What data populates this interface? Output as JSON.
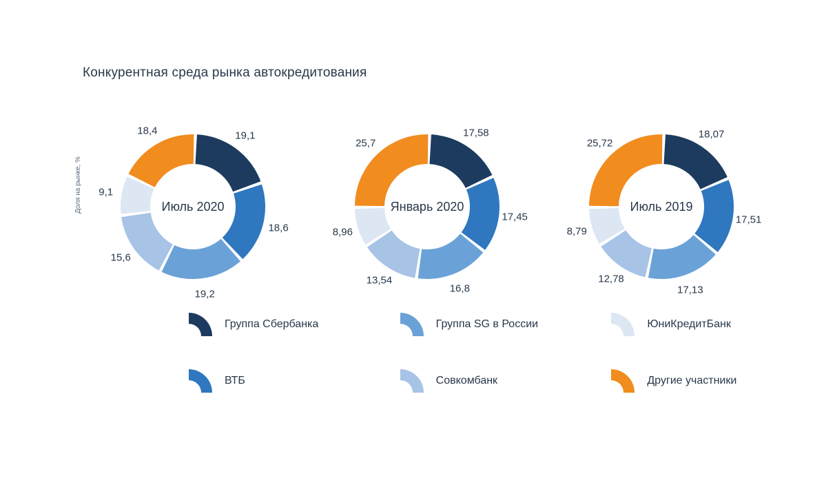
{
  "title": "Конкурентная среда рынка автокредитования",
  "y_axis_label": "Доля на рынке, %",
  "background_color": "#ffffff",
  "text_color": "#28384a",
  "title_fontsize": 19,
  "center_label_fontsize": 18,
  "slice_label_fontsize": 15,
  "legend_fontsize": 16,
  "donut": {
    "outer_radius": 105,
    "inner_radius": 62,
    "gap_deg": 2.5,
    "label_radius": 128,
    "start_angle_deg": 2
  },
  "series": [
    {
      "key": "sberbank",
      "label": "Группа Сбербанка",
      "color": "#1c3b5e"
    },
    {
      "key": "vtb",
      "label": "ВТБ",
      "color": "#2f77bf"
    },
    {
      "key": "sg",
      "label": "Группа SG в России",
      "color": "#6aa2d8"
    },
    {
      "key": "sovcom",
      "label": "Совкомбанк",
      "color": "#a7c3e6"
    },
    {
      "key": "unicredit",
      "label": "ЮниКредитБанк",
      "color": "#dce7f3"
    },
    {
      "key": "others",
      "label": "Другие участники",
      "color": "#f18c1f"
    }
  ],
  "charts": [
    {
      "center_label": "Июль 2020",
      "slices": [
        {
          "series": "sberbank",
          "value": 19.1,
          "display": "19,1"
        },
        {
          "series": "vtb",
          "value": 18.6,
          "display": "18,6"
        },
        {
          "series": "sg",
          "value": 19.2,
          "display": "19,2"
        },
        {
          "series": "sovcom",
          "value": 15.6,
          "display": "15,6"
        },
        {
          "series": "unicredit",
          "value": 9.1,
          "display": "9,1"
        },
        {
          "series": "others",
          "value": 18.4,
          "display": "18,4"
        }
      ]
    },
    {
      "center_label": "Январь 2020",
      "slices": [
        {
          "series": "sberbank",
          "value": 17.58,
          "display": "17,58"
        },
        {
          "series": "vtb",
          "value": 17.45,
          "display": "17,45"
        },
        {
          "series": "sg",
          "value": 16.8,
          "display": "16,8"
        },
        {
          "series": "sovcom",
          "value": 13.54,
          "display": "13,54"
        },
        {
          "series": "unicredit",
          "value": 8.96,
          "display": "8,96"
        },
        {
          "series": "others",
          "value": 25.7,
          "display": "25,7"
        }
      ]
    },
    {
      "center_label": "Июль 2019",
      "slices": [
        {
          "series": "sberbank",
          "value": 18.07,
          "display": "18,07"
        },
        {
          "series": "vtb",
          "value": 17.51,
          "display": "17,51"
        },
        {
          "series": "sg",
          "value": 17.13,
          "display": "17,13"
        },
        {
          "series": "sovcom",
          "value": 12.78,
          "display": "12,78"
        },
        {
          "series": "unicredit",
          "value": 8.79,
          "display": "8,79"
        },
        {
          "series": "others",
          "value": 25.72,
          "display": "25,72"
        }
      ]
    }
  ],
  "legend_layout": [
    [
      "sberbank",
      "sg",
      "unicredit"
    ],
    [
      "vtb",
      "sovcom",
      "others"
    ]
  ]
}
